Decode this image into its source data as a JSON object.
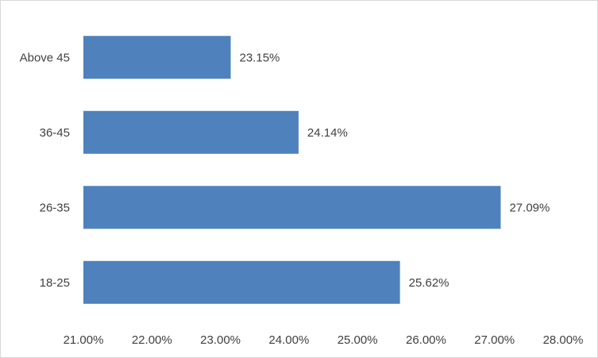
{
  "chart_data": {
    "type": "bar",
    "orientation": "horizontal",
    "title": "",
    "xlabel": "",
    "ylabel": "",
    "categories": [
      "Above 45",
      "36-45",
      "26-35",
      "18-25"
    ],
    "values": [
      23.15,
      24.14,
      27.09,
      25.62
    ],
    "data_labels": [
      "23.15%",
      "24.14%",
      "27.09%",
      "25.62%"
    ],
    "xlim": [
      21,
      28
    ],
    "x_ticks": [
      21,
      22,
      23,
      24,
      25,
      26,
      27,
      28
    ],
    "x_tick_labels": [
      "21.00%",
      "22.00%",
      "23.00%",
      "24.00%",
      "25.00%",
      "26.00%",
      "27.00%",
      "28.00%"
    ],
    "grid": false,
    "legend": "none",
    "bar_color": "#4f81bd"
  }
}
